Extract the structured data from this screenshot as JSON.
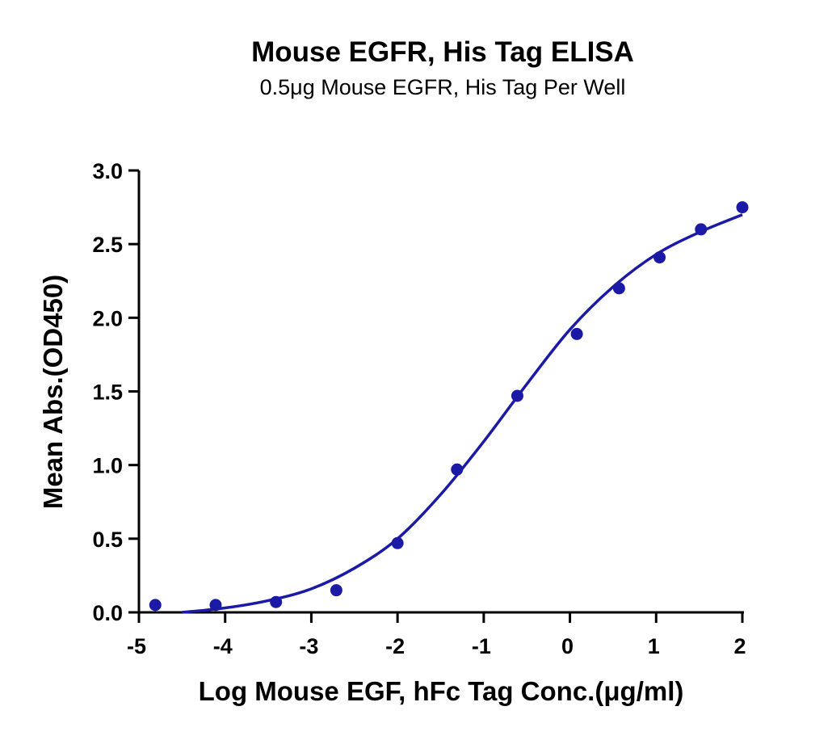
{
  "chart_data": {
    "type": "scatter",
    "title": "Mouse EGFR, His Tag ELISA",
    "subtitle": "0.5μg Mouse EGFR, His Tag Per Well",
    "xlabel": "Log Mouse EGF, hFc Tag Conc.(μg/ml)",
    "ylabel": "Mean Abs.(OD450)",
    "xlim": [
      -5,
      2
    ],
    "ylim": [
      0,
      3.0
    ],
    "x_ticks": [
      "-5",
      "-4",
      "-3",
      "-2",
      "-1",
      "0",
      "1",
      "2"
    ],
    "y_ticks": [
      "0.0",
      "0.5",
      "1.0",
      "1.5",
      "2.0",
      "2.5",
      "3.0"
    ],
    "grid": false,
    "colors": {
      "series": "#1a1aa6",
      "axes": "#000000"
    },
    "series": [
      {
        "points": [
          {
            "x": -4.81,
            "y": 0.05
          },
          {
            "x": -4.11,
            "y": 0.05
          },
          {
            "x": -3.41,
            "y": 0.07
          },
          {
            "x": -2.71,
            "y": 0.15
          },
          {
            "x": -2.0,
            "y": 0.47
          },
          {
            "x": -1.31,
            "y": 0.97
          },
          {
            "x": -0.61,
            "y": 1.47
          },
          {
            "x": 0.08,
            "y": 1.89
          },
          {
            "x": 0.57,
            "y": 2.2
          },
          {
            "x": 1.04,
            "y": 2.41
          },
          {
            "x": 1.52,
            "y": 2.6
          },
          {
            "x": 2.0,
            "y": 2.75
          }
        ],
        "fit_curve": {
          "model": "four-parameter logistic",
          "points": [
            {
              "x": -4.5,
              "y": 0.0
            },
            {
              "x": -4.0,
              "y": 0.03
            },
            {
              "x": -3.5,
              "y": 0.08
            },
            {
              "x": -3.0,
              "y": 0.16
            },
            {
              "x": -2.5,
              "y": 0.3
            },
            {
              "x": -2.0,
              "y": 0.5
            },
            {
              "x": -1.5,
              "y": 0.8
            },
            {
              "x": -1.0,
              "y": 1.16
            },
            {
              "x": -0.5,
              "y": 1.55
            },
            {
              "x": 0.0,
              "y": 1.92
            },
            {
              "x": 0.5,
              "y": 2.21
            },
            {
              "x": 1.0,
              "y": 2.43
            },
            {
              "x": 1.5,
              "y": 2.58
            },
            {
              "x": 2.0,
              "y": 2.7
            }
          ]
        }
      }
    ]
  }
}
